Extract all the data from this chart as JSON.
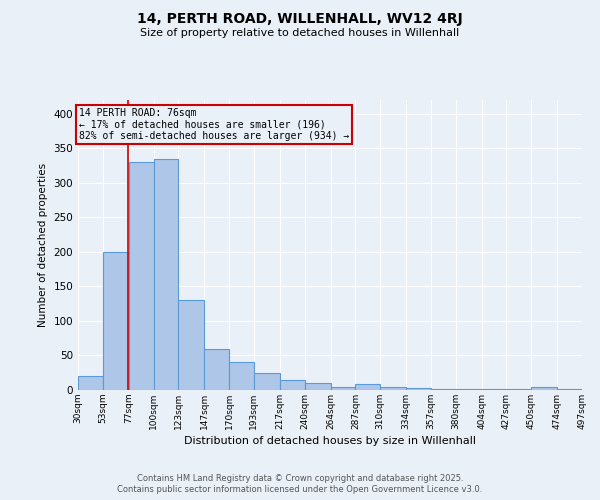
{
  "title1": "14, PERTH ROAD, WILLENHALL, WV12 4RJ",
  "title2": "Size of property relative to detached houses in Willenhall",
  "xlabel": "Distribution of detached houses by size in Willenhall",
  "ylabel": "Number of detached properties",
  "bin_edges": [
    30,
    53,
    77,
    100,
    123,
    147,
    170,
    193,
    217,
    240,
    264,
    287,
    310,
    334,
    357,
    380,
    404,
    427,
    450,
    474,
    497
  ],
  "bar_heights": [
    20,
    200,
    330,
    335,
    130,
    60,
    40,
    25,
    15,
    10,
    5,
    8,
    5,
    3,
    2,
    2,
    2,
    1,
    5,
    2
  ],
  "bar_fill_color": "#aec6e8",
  "bar_edge_color": "#5b9bd5",
  "property_size": 76,
  "annotation_title": "14 PERTH ROAD: 76sqm",
  "annotation_line1": "← 17% of detached houses are smaller (196)",
  "annotation_line2": "82% of semi-detached houses are larger (934) →",
  "annotation_box_color": "#cc0000",
  "vline_color": "#cc0000",
  "background_color": "#eaf0f8",
  "grid_color": "#ffffff",
  "footer1": "Contains HM Land Registry data © Crown copyright and database right 2025.",
  "footer2": "Contains public sector information licensed under the Open Government Licence v3.0.",
  "ylim": [
    0,
    420
  ],
  "yticks": [
    0,
    50,
    100,
    150,
    200,
    250,
    300,
    350,
    400
  ]
}
